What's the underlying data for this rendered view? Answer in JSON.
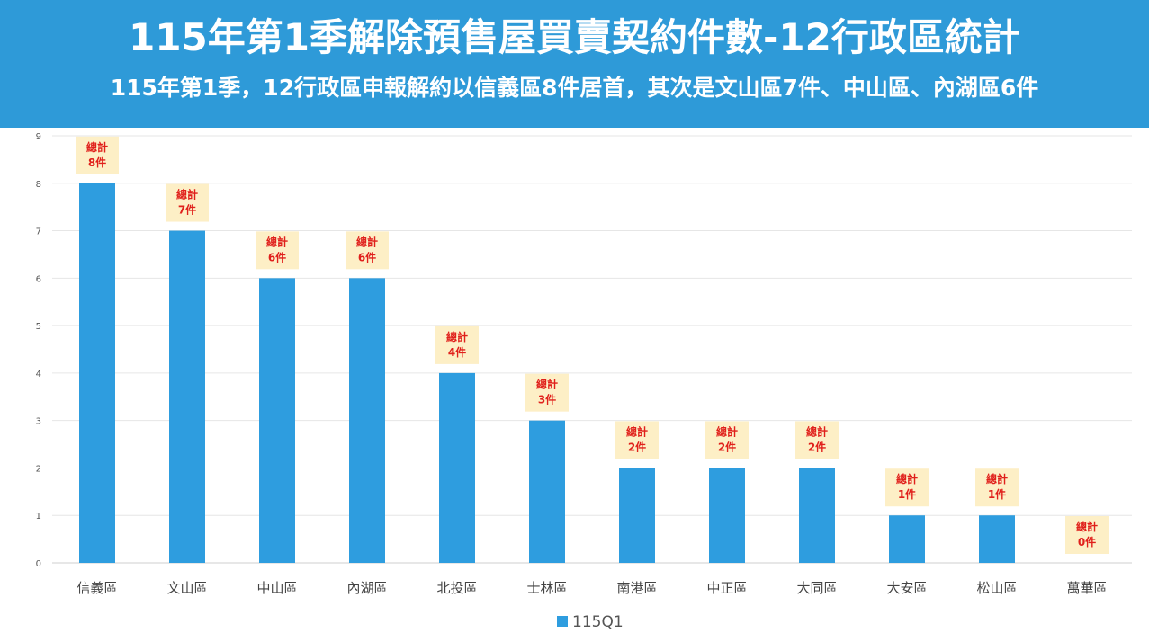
{
  "header": {
    "title": "115年第1季解除預售屋買賣契約件數-12行政區統計",
    "subtitle": "115年第1季，12行政區申報解約以信義區8件居首，其次是文山區7件、中山區、內湖區6件"
  },
  "colors": {
    "header_bg": "#2e9ad8",
    "bar": "#2e9ddf",
    "label_bg": "#fdefc6",
    "label_text": "#e0201b"
  },
  "chart_data": {
    "type": "bar",
    "categories": [
      "信義區",
      "文山區",
      "中山區",
      "內湖區",
      "北投區",
      "士林區",
      "南港區",
      "中正區",
      "大同區",
      "大安區",
      "松山區",
      "萬華區"
    ],
    "series": [
      {
        "name": "115Q1",
        "values": [
          8,
          7,
          6,
          6,
          4,
          3,
          2,
          2,
          2,
          1,
          1,
          0
        ]
      }
    ],
    "data_labels": [
      [
        "總計",
        "8件"
      ],
      [
        "總計",
        "7件"
      ],
      [
        "總計",
        "6件"
      ],
      [
        "總計",
        "6件"
      ],
      [
        "總計",
        "4件"
      ],
      [
        "總計",
        "3件"
      ],
      [
        "總計",
        "2件"
      ],
      [
        "總計",
        "2件"
      ],
      [
        "總計",
        "2件"
      ],
      [
        "總計",
        "1件"
      ],
      [
        "總計",
        "1件"
      ],
      [
        "總計",
        "0件"
      ]
    ],
    "ylim": [
      0,
      9
    ],
    "yticks": [
      0,
      1,
      2,
      3,
      4,
      5,
      6,
      7,
      8,
      9
    ],
    "grid": true,
    "legend": "bottom-center"
  }
}
